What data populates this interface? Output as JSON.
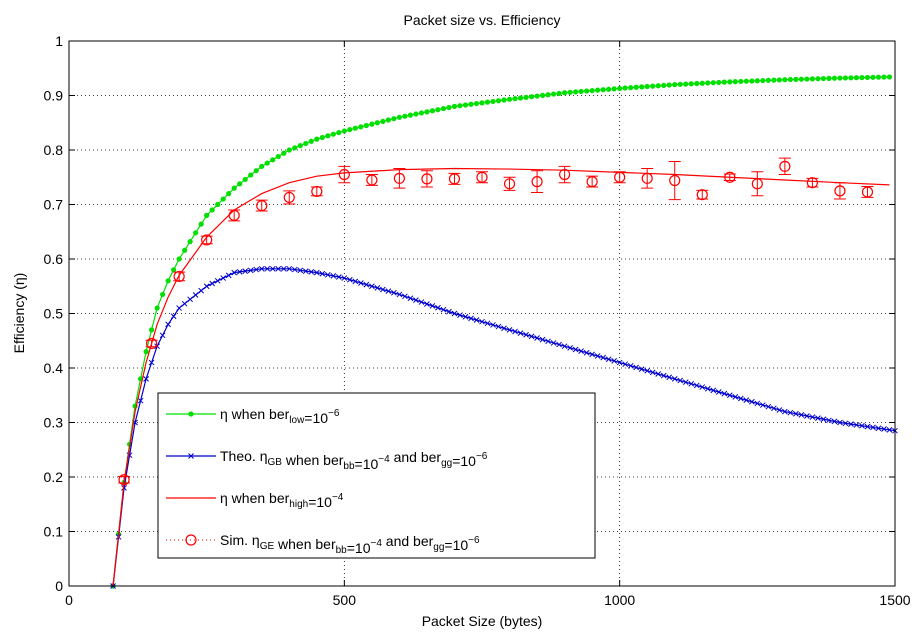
{
  "chart_data": {
    "type": "line",
    "title": "Packet size vs. Efficiency",
    "xlabel": "Packet Size (bytes)",
    "ylabel": "Efficiency (η)",
    "xlim": [
      0,
      1500
    ],
    "ylim": [
      0,
      1
    ],
    "xticks": [
      0,
      500,
      1000,
      1500
    ],
    "yticks": [
      0,
      0.1,
      0.2,
      0.3,
      0.4,
      0.5,
      0.6,
      0.7,
      0.8,
      0.9,
      1
    ],
    "xtick_labels": [
      "0",
      "500",
      "1000",
      "1500"
    ],
    "ytick_labels": [
      "0",
      "0.1",
      "0.2",
      "0.3",
      "0.4",
      "0.5",
      "0.6",
      "0.7",
      "0.8",
      "0.9",
      "1"
    ],
    "grid": true,
    "legend_placement": "lower-left",
    "series": [
      {
        "name": "η when ber_low=10^-6",
        "color": "#00e000",
        "marker": "dot",
        "x": [
          80,
          100,
          120,
          140,
          160,
          180,
          200,
          250,
          300,
          350,
          400,
          450,
          500,
          600,
          700,
          800,
          900,
          1000,
          1100,
          1200,
          1300,
          1400,
          1490
        ],
        "y": [
          0.0,
          0.19,
          0.33,
          0.43,
          0.51,
          0.56,
          0.6,
          0.68,
          0.73,
          0.77,
          0.8,
          0.82,
          0.835,
          0.86,
          0.88,
          0.893,
          0.905,
          0.913,
          0.92,
          0.925,
          0.929,
          0.932,
          0.934
        ]
      },
      {
        "name": "Theo. η_GB when ber_bb=10^-4 and ber_gg=10^-6",
        "color": "#0000cc",
        "marker": "x",
        "x": [
          80,
          100,
          120,
          140,
          160,
          180,
          200,
          250,
          300,
          350,
          400,
          450,
          500,
          600,
          700,
          800,
          900,
          1000,
          1100,
          1200,
          1300,
          1400,
          1500
        ],
        "y": [
          0.0,
          0.18,
          0.3,
          0.38,
          0.44,
          0.48,
          0.51,
          0.55,
          0.575,
          0.582,
          0.582,
          0.575,
          0.565,
          0.535,
          0.5,
          0.47,
          0.44,
          0.41,
          0.38,
          0.35,
          0.32,
          0.3,
          0.285
        ]
      },
      {
        "name": "η when ber_high=10^-4",
        "color": "#ff0000",
        "marker": "none",
        "x": [
          80,
          100,
          120,
          140,
          160,
          180,
          200,
          250,
          300,
          350,
          400,
          450,
          500,
          600,
          700,
          800,
          900,
          1000,
          1100,
          1200,
          1300,
          1400,
          1490
        ],
        "y": [
          0.0,
          0.19,
          0.32,
          0.41,
          0.48,
          0.53,
          0.57,
          0.64,
          0.69,
          0.72,
          0.74,
          0.752,
          0.758,
          0.764,
          0.766,
          0.765,
          0.763,
          0.759,
          0.755,
          0.75,
          0.745,
          0.74,
          0.736
        ]
      },
      {
        "name": "Sim. η_GE when ber_bb=10^-4 and ber_gg=10^-6",
        "color": "#ff0000",
        "marker": "circle",
        "x": [
          100,
          150,
          200,
          250,
          300,
          350,
          400,
          450,
          500,
          550,
          600,
          650,
          700,
          750,
          800,
          850,
          900,
          950,
          1000,
          1050,
          1100,
          1150,
          1200,
          1250,
          1300,
          1350,
          1400,
          1450
        ],
        "y": [
          0.195,
          0.445,
          0.568,
          0.635,
          0.68,
          0.698,
          0.713,
          0.724,
          0.755,
          0.745,
          0.748,
          0.747,
          0.747,
          0.75,
          0.738,
          0.742,
          0.755,
          0.742,
          0.75,
          0.748,
          0.744,
          0.718,
          0.75,
          0.738,
          0.77,
          0.74,
          0.725,
          0.723
        ],
        "err": [
          0.006,
          0.006,
          0.008,
          0.007,
          0.01,
          0.01,
          0.012,
          0.008,
          0.015,
          0.01,
          0.018,
          0.015,
          0.01,
          0.01,
          0.012,
          0.02,
          0.015,
          0.01,
          0.01,
          0.018,
          0.035,
          0.008,
          0.006,
          0.022,
          0.015,
          0.008,
          0.015,
          0.01
        ]
      }
    ]
  }
}
